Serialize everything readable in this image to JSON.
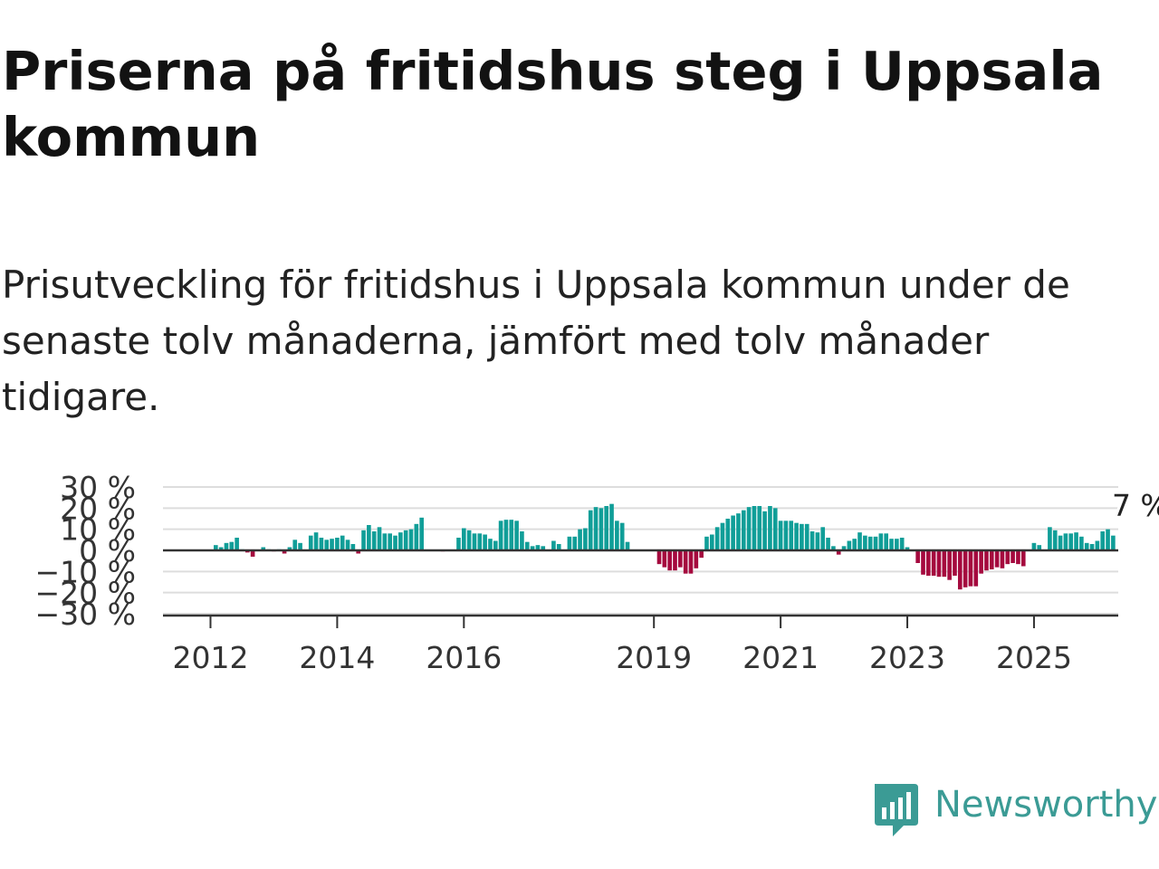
{
  "title": "Priserna på fritidshus steg i Uppsala kommun",
  "subtitle": "Prisutveckling för fritidshus i Uppsala kommun under de senaste tolv månaderna, jämfört med tolv månader tidigare.",
  "brand": {
    "name": "Newsworthy",
    "color": "#3b9b95",
    "icon": "bar-chart-speech-icon"
  },
  "chart_data": {
    "type": "bar",
    "colors": {
      "positive": "#109e98",
      "negative": "#a5093e",
      "grid": "#dddddd",
      "axis": "#333333"
    },
    "ylim": [
      -30,
      30
    ],
    "yticks": [
      {
        "value": 30,
        "label": "30 %"
      },
      {
        "value": 20,
        "label": "20 %"
      },
      {
        "value": 10,
        "label": "10 %"
      },
      {
        "value": 0,
        "label": "0 %"
      },
      {
        "value": -10,
        "label": "−10 %"
      },
      {
        "value": -20,
        "label": "−20 %"
      },
      {
        "value": -30,
        "label": "−30 %"
      }
    ],
    "xticks": [
      {
        "value": 2012,
        "label": "2012"
      },
      {
        "value": 2014,
        "label": "2014"
      },
      {
        "value": 2016,
        "label": "2016"
      },
      {
        "value": 2019,
        "label": "2019"
      },
      {
        "value": 2021,
        "label": "2021"
      },
      {
        "value": 2023,
        "label": "2023"
      },
      {
        "value": 2025,
        "label": "2025"
      }
    ],
    "xlim": [
      2011.25,
      2026.33
    ],
    "x_start": 2012.0,
    "x_step": 0.08333,
    "values": [
      0,
      2.5,
      1.5,
      3.5,
      4,
      6,
      0.5,
      -1,
      -3,
      0,
      1.5,
      0.5,
      -0.5,
      0.5,
      -1.5,
      1.5,
      5,
      3.5,
      0,
      7,
      8.5,
      6,
      5,
      5.5,
      6,
      7,
      5,
      3,
      -1.5,
      9.5,
      12,
      9,
      11,
      8,
      8,
      7,
      8.5,
      9.5,
      10,
      12.5,
      15.5,
      0,
      0,
      0,
      -0.5,
      0,
      0,
      6,
      10.5,
      9.5,
      8,
      8,
      7.5,
      5.5,
      4.5,
      14,
      14.5,
      14.5,
      14,
      9,
      4,
      2,
      2.5,
      2,
      0,
      4.5,
      3,
      0,
      6.5,
      6.5,
      10,
      10.5,
      19,
      20.5,
      20,
      21,
      22,
      14,
      13,
      4,
      0,
      0,
      0,
      0,
      0,
      -6.5,
      -8,
      -9.5,
      -9.5,
      -8,
      -11,
      -11,
      -8.5,
      -3.5,
      6.5,
      7.5,
      11,
      13,
      15,
      16.5,
      17.5,
      19,
      20.5,
      21,
      21,
      18.5,
      21,
      20,
      14,
      14,
      14,
      13,
      12.5,
      12.5,
      9,
      8.5,
      11,
      6,
      2,
      -2,
      2,
      4.5,
      5.5,
      8.5,
      7,
      6.5,
      6.5,
      8,
      8,
      5.5,
      5.5,
      6,
      1.5,
      0,
      -6,
      -11.5,
      -12,
      -12,
      -12.5,
      -12.5,
      -14,
      -12,
      -18.5,
      -17.5,
      -17,
      -17,
      -11,
      -9.5,
      -9,
      -8,
      -8.5,
      -6.5,
      -6,
      -6.5,
      -7.5,
      0,
      3.5,
      2.5,
      0,
      11,
      9.5,
      7,
      8,
      8,
      8.5,
      6.5,
      3.5,
      3,
      4.5,
      9,
      10,
      7
    ],
    "annotation": {
      "label": "7 %"
    }
  }
}
